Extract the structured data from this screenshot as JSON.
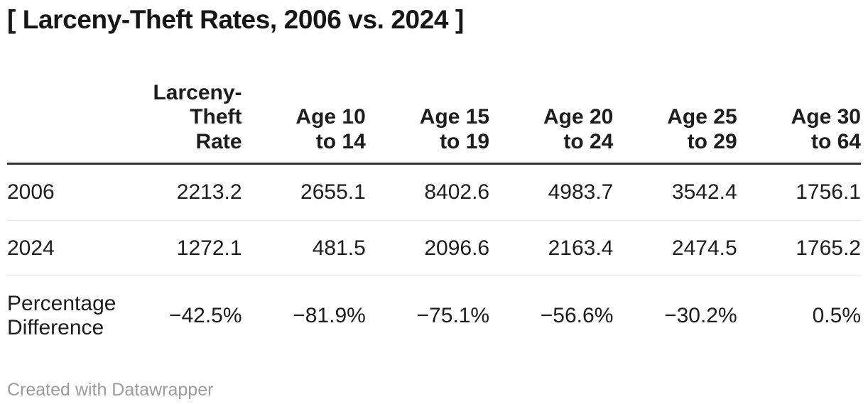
{
  "title": "[ Larceny-Theft Rates, 2006 vs. 2024 ]",
  "colors": {
    "text": "#1d1d1d",
    "header_rule": "#333333",
    "row_divider": "#e9e9e9",
    "footer_text": "#9c9c9c",
    "background": "#ffffff"
  },
  "table": {
    "header": {
      "corner": "",
      "columns": [
        "Larceny-\nTheft\nRate",
        "Age 10\nto 14",
        "Age 15\nto 19",
        "Age 20\nto 24",
        "Age 25\nto 29",
        "Age 30\nto 64"
      ]
    },
    "rows": [
      {
        "label": "2006",
        "cells": [
          "2213.2",
          "2655.1",
          "8402.6",
          "4983.7",
          "3542.4",
          "1756.1"
        ]
      },
      {
        "label": "2024",
        "cells": [
          "1272.1",
          "481.5",
          "2096.6",
          "2163.4",
          "2474.5",
          "1765.2"
        ]
      },
      {
        "label": "Percentage\nDifference",
        "cells": [
          "−42.5%",
          "−81.9%",
          "−75.1%",
          "−56.6%",
          "−30.2%",
          "0.5%"
        ]
      }
    ]
  },
  "footer": {
    "credit": "Created with Datawrapper"
  },
  "chart_data": {
    "type": "table",
    "title": "[ Larceny-Theft Rates, 2006 vs. 2024 ]",
    "columns": [
      "Larceny-Theft Rate",
      "Age 10 to 14",
      "Age 15 to 19",
      "Age 20 to 24",
      "Age 25 to 29",
      "Age 30 to 64"
    ],
    "rows": [
      {
        "label": "2006",
        "values": [
          2213.2,
          2655.1,
          8402.6,
          4983.7,
          3542.4,
          1756.1
        ]
      },
      {
        "label": "2024",
        "values": [
          1272.1,
          481.5,
          2096.6,
          2163.4,
          2474.5,
          1765.2
        ]
      },
      {
        "label": "Percentage Difference",
        "values_percent": [
          -42.5,
          -81.9,
          -75.1,
          -56.6,
          -30.2,
          0.5
        ]
      }
    ],
    "credit": "Created with Datawrapper"
  }
}
